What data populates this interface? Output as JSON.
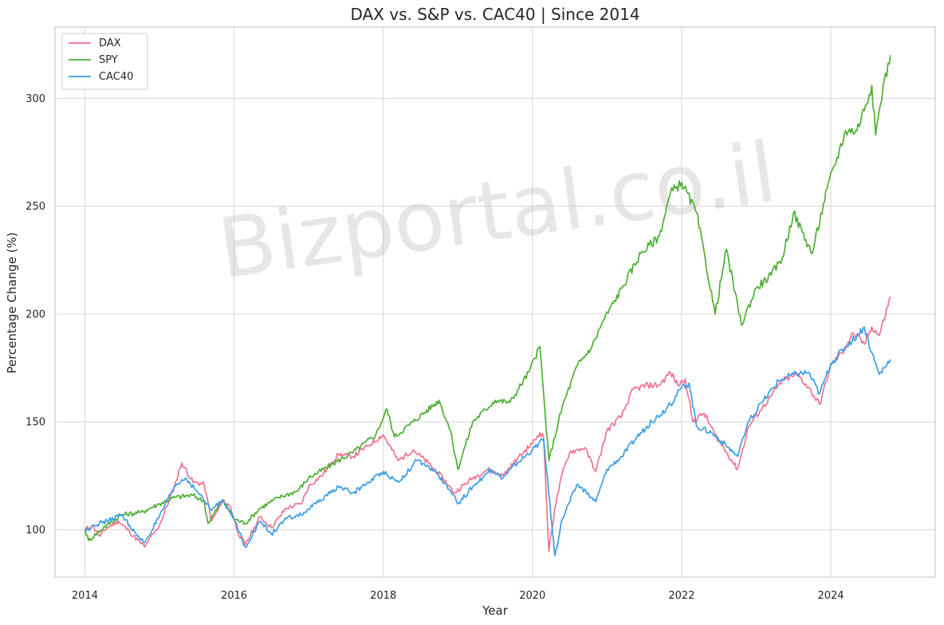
{
  "chart_data": {
    "type": "line",
    "title": "DAX vs. S&P vs. CAC40 | Since 2014",
    "xlabel": "Year",
    "ylabel": "Percentage Change (%)",
    "xlim": [
      2013.6,
      2025.4
    ],
    "ylim": [
      78,
      333
    ],
    "x_ticks": [
      2014,
      2016,
      2018,
      2020,
      2022,
      2024
    ],
    "y_ticks": [
      100,
      150,
      200,
      250,
      300
    ],
    "grid": true,
    "legend_position": "top-left",
    "watermark": "Bizportal.co.il",
    "series": [
      {
        "name": "DAX",
        "color": "#f07390",
        "points": [
          [
            2014.0,
            100
          ],
          [
            2014.1,
            102
          ],
          [
            2014.2,
            97
          ],
          [
            2014.3,
            101
          ],
          [
            2014.45,
            104
          ],
          [
            2014.6,
            99
          ],
          [
            2014.8,
            92
          ],
          [
            2015.0,
            102
          ],
          [
            2015.2,
            120
          ],
          [
            2015.3,
            131
          ],
          [
            2015.45,
            122
          ],
          [
            2015.6,
            121
          ],
          [
            2015.7,
            104
          ],
          [
            2015.85,
            113
          ],
          [
            2015.95,
            111
          ],
          [
            2016.05,
            99
          ],
          [
            2016.15,
            93
          ],
          [
            2016.35,
            106
          ],
          [
            2016.5,
            101
          ],
          [
            2016.7,
            110
          ],
          [
            2016.9,
            112
          ],
          [
            2017.0,
            120
          ],
          [
            2017.2,
            126
          ],
          [
            2017.4,
            135
          ],
          [
            2017.6,
            134
          ],
          [
            2017.8,
            139
          ],
          [
            2018.0,
            144
          ],
          [
            2018.2,
            132
          ],
          [
            2018.4,
            137
          ],
          [
            2018.6,
            131
          ],
          [
            2018.8,
            124
          ],
          [
            2018.95,
            117
          ],
          [
            2019.2,
            124
          ],
          [
            2019.4,
            128
          ],
          [
            2019.6,
            125
          ],
          [
            2019.8,
            133
          ],
          [
            2020.0,
            140
          ],
          [
            2020.1,
            145
          ],
          [
            2020.15,
            143
          ],
          [
            2020.22,
            90
          ],
          [
            2020.3,
            110
          ],
          [
            2020.4,
            126
          ],
          [
            2020.5,
            136
          ],
          [
            2020.7,
            138
          ],
          [
            2020.85,
            127
          ],
          [
            2021.0,
            146
          ],
          [
            2021.2,
            153
          ],
          [
            2021.35,
            165
          ],
          [
            2021.55,
            167
          ],
          [
            2021.7,
            167
          ],
          [
            2021.85,
            173
          ],
          [
            2021.95,
            167
          ],
          [
            2022.05,
            170
          ],
          [
            2022.15,
            150
          ],
          [
            2022.3,
            154
          ],
          [
            2022.45,
            144
          ],
          [
            2022.6,
            136
          ],
          [
            2022.75,
            128
          ],
          [
            2022.9,
            148
          ],
          [
            2023.05,
            155
          ],
          [
            2023.2,
            162
          ],
          [
            2023.35,
            169
          ],
          [
            2023.55,
            172
          ],
          [
            2023.7,
            166
          ],
          [
            2023.85,
            158
          ],
          [
            2024.0,
            176
          ],
          [
            2024.15,
            182
          ],
          [
            2024.3,
            191
          ],
          [
            2024.45,
            186
          ],
          [
            2024.55,
            194
          ],
          [
            2024.65,
            190
          ],
          [
            2024.8,
            208
          ]
        ]
      },
      {
        "name": "SPY",
        "color": "#4daf32",
        "points": [
          [
            2014.0,
            100
          ],
          [
            2014.05,
            95
          ],
          [
            2014.25,
            101
          ],
          [
            2014.5,
            107
          ],
          [
            2014.75,
            108
          ],
          [
            2015.0,
            112
          ],
          [
            2015.2,
            115
          ],
          [
            2015.45,
            116
          ],
          [
            2015.6,
            113
          ],
          [
            2015.65,
            103
          ],
          [
            2015.85,
            114
          ],
          [
            2016.0,
            105
          ],
          [
            2016.15,
            103
          ],
          [
            2016.35,
            110
          ],
          [
            2016.6,
            115
          ],
          [
            2016.85,
            118
          ],
          [
            2017.0,
            124
          ],
          [
            2017.3,
            130
          ],
          [
            2017.6,
            136
          ],
          [
            2017.9,
            144
          ],
          [
            2018.05,
            156
          ],
          [
            2018.15,
            143
          ],
          [
            2018.4,
            150
          ],
          [
            2018.75,
            160
          ],
          [
            2018.9,
            146
          ],
          [
            2019.0,
            128
          ],
          [
            2019.2,
            150
          ],
          [
            2019.5,
            160
          ],
          [
            2019.7,
            159
          ],
          [
            2019.95,
            173
          ],
          [
            2020.1,
            185
          ],
          [
            2020.22,
            132
          ],
          [
            2020.4,
            157
          ],
          [
            2020.6,
            176
          ],
          [
            2020.8,
            185
          ],
          [
            2020.95,
            197
          ],
          [
            2021.2,
            212
          ],
          [
            2021.45,
            228
          ],
          [
            2021.7,
            236
          ],
          [
            2021.85,
            256
          ],
          [
            2022.0,
            261
          ],
          [
            2022.2,
            247
          ],
          [
            2022.45,
            200
          ],
          [
            2022.6,
            230
          ],
          [
            2022.8,
            195
          ],
          [
            2023.0,
            212
          ],
          [
            2023.2,
            218
          ],
          [
            2023.35,
            226
          ],
          [
            2023.5,
            247
          ],
          [
            2023.75,
            228
          ],
          [
            2023.95,
            258
          ],
          [
            2024.2,
            285
          ],
          [
            2024.35,
            285
          ],
          [
            2024.55,
            306
          ],
          [
            2024.6,
            283
          ],
          [
            2024.7,
            305
          ],
          [
            2024.8,
            320
          ]
        ]
      },
      {
        "name": "CAC40",
        "color": "#3b9ee6",
        "points": [
          [
            2014.0,
            99
          ],
          [
            2014.1,
            102
          ],
          [
            2014.3,
            104
          ],
          [
            2014.5,
            107
          ],
          [
            2014.7,
            97
          ],
          [
            2014.8,
            94
          ],
          [
            2015.0,
            106
          ],
          [
            2015.2,
            120
          ],
          [
            2015.35,
            124
          ],
          [
            2015.5,
            118
          ],
          [
            2015.7,
            109
          ],
          [
            2015.85,
            114
          ],
          [
            2016.0,
            105
          ],
          [
            2016.15,
            92
          ],
          [
            2016.35,
            104
          ],
          [
            2016.5,
            98
          ],
          [
            2016.7,
            105
          ],
          [
            2016.9,
            107
          ],
          [
            2017.1,
            112
          ],
          [
            2017.4,
            120
          ],
          [
            2017.6,
            117
          ],
          [
            2017.8,
            122
          ],
          [
            2018.0,
            127
          ],
          [
            2018.2,
            122
          ],
          [
            2018.45,
            132
          ],
          [
            2018.7,
            127
          ],
          [
            2018.9,
            118
          ],
          [
            2019.0,
            112
          ],
          [
            2019.2,
            120
          ],
          [
            2019.45,
            128
          ],
          [
            2019.6,
            124
          ],
          [
            2019.8,
            131
          ],
          [
            2020.0,
            137
          ],
          [
            2020.15,
            142
          ],
          [
            2020.3,
            88
          ],
          [
            2020.4,
            105
          ],
          [
            2020.6,
            121
          ],
          [
            2020.85,
            113
          ],
          [
            2021.0,
            128
          ],
          [
            2021.2,
            134
          ],
          [
            2021.4,
            143
          ],
          [
            2021.6,
            150
          ],
          [
            2021.85,
            158
          ],
          [
            2022.0,
            166
          ],
          [
            2022.1,
            168
          ],
          [
            2022.2,
            148
          ],
          [
            2022.4,
            145
          ],
          [
            2022.6,
            139
          ],
          [
            2022.75,
            134
          ],
          [
            2022.9,
            150
          ],
          [
            2023.1,
            160
          ],
          [
            2023.3,
            169
          ],
          [
            2023.5,
            172
          ],
          [
            2023.7,
            173
          ],
          [
            2023.85,
            163
          ],
          [
            2024.0,
            177
          ],
          [
            2024.2,
            185
          ],
          [
            2024.35,
            190
          ],
          [
            2024.45,
            194
          ],
          [
            2024.55,
            182
          ],
          [
            2024.65,
            172
          ],
          [
            2024.8,
            179
          ]
        ]
      }
    ]
  }
}
